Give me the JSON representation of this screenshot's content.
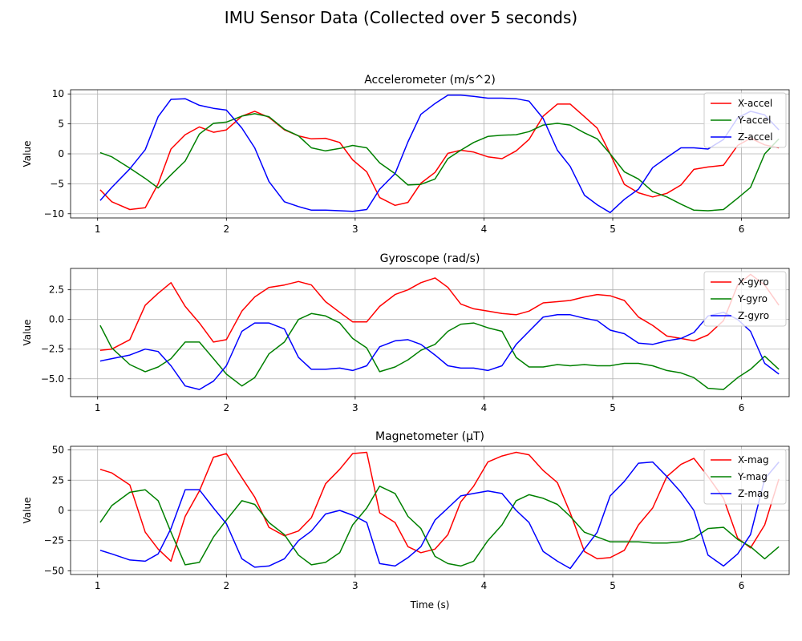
{
  "figure": {
    "title": "IMU Sensor Data (Collected over 5 seconds)"
  },
  "chart_data": [
    {
      "type": "line",
      "title": "Accelerometer (m/s^2)",
      "xlabel": "",
      "ylabel": "Value",
      "xlim": [
        0.79,
        6.37
      ],
      "ylim": [
        -10.7,
        10.7
      ],
      "xticks": [
        1,
        2,
        3,
        4,
        5,
        6
      ],
      "yticks": [
        -10,
        -5,
        0,
        5,
        10
      ],
      "grid": true,
      "legend": "top-right",
      "x": [
        1.02,
        1.11,
        1.25,
        1.37,
        1.47,
        1.57,
        1.68,
        1.79,
        1.9,
        2.0,
        2.12,
        2.22,
        2.33,
        2.45,
        2.56,
        2.66,
        2.77,
        2.88,
        2.98,
        3.09,
        3.19,
        3.31,
        3.41,
        3.51,
        3.62,
        3.72,
        3.82,
        3.92,
        4.03,
        4.14,
        4.25,
        4.35,
        4.46,
        4.57,
        4.67,
        4.78,
        4.88,
        4.98,
        5.09,
        5.2,
        5.31,
        5.42,
        5.53,
        5.63,
        5.74,
        5.86,
        5.97,
        6.07,
        6.18,
        6.29
      ],
      "series": [
        {
          "name": "X-accel",
          "color": "#ff0000",
          "values": [
            -6.0,
            -8.0,
            -9.3,
            -9.0,
            -5.0,
            0.8,
            3.2,
            4.5,
            3.6,
            4.0,
            6.3,
            7.1,
            6.1,
            4.0,
            3.0,
            2.5,
            2.6,
            1.9,
            -1.0,
            -3.0,
            -7.3,
            -8.6,
            -8.1,
            -4.9,
            -3.1,
            0.1,
            0.6,
            0.3,
            -0.5,
            -0.8,
            0.5,
            2.4,
            6.3,
            8.3,
            8.3,
            6.2,
            4.3,
            0.0,
            -5.1,
            -6.5,
            -7.2,
            -6.6,
            -5.2,
            -2.6,
            -2.2,
            -1.9,
            1.4,
            2.6,
            1.5,
            1.0
          ]
        },
        {
          "name": "Y-accel",
          "color": "#008000",
          "values": [
            0.2,
            -0.5,
            -2.4,
            -4.1,
            -5.7,
            -3.5,
            -1.2,
            3.3,
            5.1,
            5.3,
            6.3,
            6.7,
            6.2,
            4.1,
            3.0,
            1.0,
            0.5,
            0.9,
            1.4,
            1.0,
            -1.5,
            -3.3,
            -5.2,
            -5.1,
            -4.2,
            -0.8,
            0.6,
            1.9,
            2.9,
            3.1,
            3.2,
            3.7,
            4.8,
            5.1,
            4.8,
            3.5,
            2.5,
            0.0,
            -3.0,
            -4.2,
            -6.3,
            -7.2,
            -8.4,
            -9.4,
            -9.5,
            -9.3,
            -7.4,
            -5.6,
            0.0,
            2.5
          ]
        },
        {
          "name": "Z-accel",
          "color": "#0000ff",
          "values": [
            -7.8,
            -5.6,
            -2.5,
            0.7,
            6.2,
            9.1,
            9.2,
            8.1,
            7.6,
            7.3,
            4.3,
            1.0,
            -4.6,
            -8.0,
            -8.8,
            -9.4,
            -9.4,
            -9.5,
            -9.6,
            -9.3,
            -5.9,
            -3.3,
            2.0,
            6.6,
            8.4,
            9.8,
            9.8,
            9.6,
            9.3,
            9.3,
            9.2,
            8.8,
            5.9,
            0.6,
            -2.1,
            -6.9,
            -8.5,
            -9.8,
            -7.6,
            -5.9,
            -2.3,
            -0.6,
            1.0,
            1.0,
            0.8,
            2.4,
            6.0,
            7.1,
            6.5,
            4.0
          ]
        }
      ]
    },
    {
      "type": "line",
      "title": "Gyroscope (rad/s)",
      "xlabel": "",
      "ylabel": "Value",
      "xlim": [
        0.79,
        6.37
      ],
      "ylim": [
        -6.5,
        4.3
      ],
      "xticks": [
        1,
        2,
        3,
        4,
        5,
        6
      ],
      "yticks": [
        -5.0,
        -2.5,
        0.0,
        2.5
      ],
      "ytick_labels": [
        "−5.0",
        "−2.5",
        "0.0",
        "2.5"
      ],
      "grid": true,
      "legend": "top-right",
      "x": [
        1.02,
        1.11,
        1.25,
        1.37,
        1.47,
        1.57,
        1.68,
        1.79,
        1.9,
        2.0,
        2.12,
        2.22,
        2.33,
        2.45,
        2.56,
        2.66,
        2.77,
        2.88,
        2.98,
        3.09,
        3.19,
        3.31,
        3.41,
        3.51,
        3.62,
        3.72,
        3.82,
        3.92,
        4.03,
        4.14,
        4.25,
        4.35,
        4.46,
        4.57,
        4.67,
        4.78,
        4.88,
        4.98,
        5.09,
        5.2,
        5.31,
        5.42,
        5.53,
        5.63,
        5.74,
        5.86,
        5.97,
        6.07,
        6.18,
        6.29
      ],
      "series": [
        {
          "name": "X-gyro",
          "color": "#ff0000",
          "values": [
            -2.6,
            -2.5,
            -1.7,
            1.2,
            2.2,
            3.1,
            1.1,
            -0.3,
            -1.9,
            -1.7,
            0.7,
            1.9,
            2.7,
            2.9,
            3.2,
            2.9,
            1.5,
            0.6,
            -0.2,
            -0.2,
            1.1,
            2.1,
            2.5,
            3.1,
            3.5,
            2.7,
            1.3,
            0.9,
            0.7,
            0.5,
            0.4,
            0.7,
            1.4,
            1.5,
            1.6,
            1.9,
            2.1,
            2.0,
            1.6,
            0.2,
            -0.5,
            -1.4,
            -1.6,
            -1.8,
            -1.3,
            -0.1,
            2.9,
            3.8,
            2.9,
            1.2
          ]
        },
        {
          "name": "Y-gyro",
          "color": "#008000",
          "values": [
            -0.5,
            -2.4,
            -3.8,
            -4.4,
            -4.0,
            -3.3,
            -1.9,
            -1.9,
            -3.3,
            -4.6,
            -5.6,
            -4.9,
            -2.9,
            -1.9,
            0.0,
            0.5,
            0.3,
            -0.3,
            -1.6,
            -2.4,
            -4.4,
            -4.0,
            -3.4,
            -2.6,
            -2.1,
            -1.0,
            -0.4,
            -0.3,
            -0.7,
            -1.0,
            -3.2,
            -4.0,
            -4.0,
            -3.8,
            -3.9,
            -3.8,
            -3.9,
            -3.9,
            -3.7,
            -3.7,
            -3.9,
            -4.3,
            -4.5,
            -4.9,
            -5.8,
            -5.9,
            -4.9,
            -4.2,
            -3.1,
            -4.2
          ]
        },
        {
          "name": "Z-gyro",
          "color": "#0000ff",
          "values": [
            -3.5,
            -3.3,
            -3.0,
            -2.5,
            -2.7,
            -3.9,
            -5.6,
            -5.9,
            -5.2,
            -3.9,
            -1.0,
            -0.3,
            -0.3,
            -0.8,
            -3.2,
            -4.2,
            -4.2,
            -4.1,
            -4.3,
            -3.9,
            -2.3,
            -1.8,
            -1.7,
            -2.1,
            -3.0,
            -3.9,
            -4.1,
            -4.1,
            -4.3,
            -3.9,
            -2.1,
            -1.0,
            0.2,
            0.4,
            0.4,
            0.1,
            -0.1,
            -0.9,
            -1.2,
            -2.0,
            -2.1,
            -1.8,
            -1.6,
            -1.1,
            0.3,
            0.6,
            0.0,
            -1.0,
            -3.7,
            -4.6
          ]
        }
      ]
    },
    {
      "type": "line",
      "title": "Magnetometer (μT)",
      "xlabel": "Time (s)",
      "ylabel": "Value",
      "xlim": [
        0.79,
        6.37
      ],
      "ylim": [
        -53,
        53
      ],
      "xticks": [
        1,
        2,
        3,
        4,
        5,
        6
      ],
      "yticks": [
        -50,
        -25,
        0,
        25,
        50
      ],
      "grid": true,
      "legend": "top-right",
      "x": [
        1.02,
        1.11,
        1.25,
        1.37,
        1.47,
        1.57,
        1.68,
        1.79,
        1.9,
        2.0,
        2.12,
        2.22,
        2.33,
        2.45,
        2.56,
        2.66,
        2.77,
        2.88,
        2.98,
        3.09,
        3.19,
        3.31,
        3.41,
        3.51,
        3.62,
        3.72,
        3.82,
        3.92,
        4.03,
        4.14,
        4.25,
        4.35,
        4.46,
        4.57,
        4.67,
        4.78,
        4.88,
        4.98,
        5.09,
        5.2,
        5.31,
        5.42,
        5.53,
        5.63,
        5.74,
        5.86,
        5.97,
        6.07,
        6.18,
        6.29
      ],
      "series": [
        {
          "name": "X-mag",
          "color": "#ff0000",
          "values": [
            34,
            31,
            21,
            -18,
            -32,
            -42,
            -5,
            16,
            44,
            47,
            27,
            11,
            -14,
            -21,
            -17,
            -6,
            22,
            34,
            47,
            48,
            -2,
            -10,
            -30,
            -35,
            -32,
            -20,
            7,
            20,
            40,
            45,
            48,
            46,
            33,
            23,
            -2,
            -34,
            -40,
            -39,
            -33,
            -12,
            2,
            28,
            38,
            43,
            28,
            10,
            -23,
            -31,
            -12,
            26
          ]
        },
        {
          "name": "Y-mag",
          "color": "#008000",
          "values": [
            -10,
            4,
            15,
            17,
            8,
            -18,
            -45,
            -43,
            -22,
            -8,
            8,
            5,
            -10,
            -20,
            -37,
            -45,
            -43,
            -35,
            -12,
            2,
            20,
            14,
            -5,
            -15,
            -38,
            -44,
            -46,
            -42,
            -25,
            -12,
            8,
            13,
            10,
            5,
            -5,
            -18,
            -22,
            -26,
            -26,
            -26,
            -27,
            -27,
            -26,
            -23,
            -15,
            -14,
            -24,
            -30,
            -40,
            -30
          ]
        },
        {
          "name": "Z-mag",
          "color": "#0000ff",
          "values": [
            -33,
            -36,
            -41,
            -42,
            -36,
            -15,
            17,
            17,
            2,
            -11,
            -40,
            -47,
            -46,
            -40,
            -25,
            -17,
            -3,
            0,
            -4,
            -10,
            -44,
            -46,
            -39,
            -30,
            -8,
            2,
            12,
            14,
            16,
            14,
            0,
            -10,
            -34,
            -42,
            -48,
            -32,
            -18,
            12,
            24,
            39,
            40,
            28,
            15,
            0,
            -37,
            -46,
            -36,
            -20,
            26,
            40
          ]
        }
      ]
    }
  ]
}
